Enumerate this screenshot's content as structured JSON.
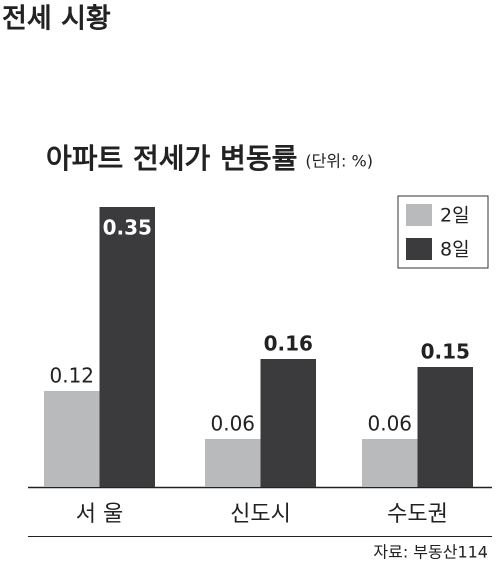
{
  "header": {
    "title": "전세 시황"
  },
  "chart_data": {
    "type": "bar",
    "title": "아파트 전세가 변동률",
    "subtitle": "(단위: %)",
    "categories": [
      "서 울",
      "신도시",
      "수도권"
    ],
    "series": [
      {
        "name": "2일",
        "color": "#b9babc",
        "values": [
          0.12,
          0.06,
          0.06
        ]
      },
      {
        "name": "8일",
        "color": "#3b3b3d",
        "values": [
          0.35,
          0.16,
          0.15
        ]
      }
    ],
    "legend": "upper right",
    "source": "자료: 부동산114"
  }
}
